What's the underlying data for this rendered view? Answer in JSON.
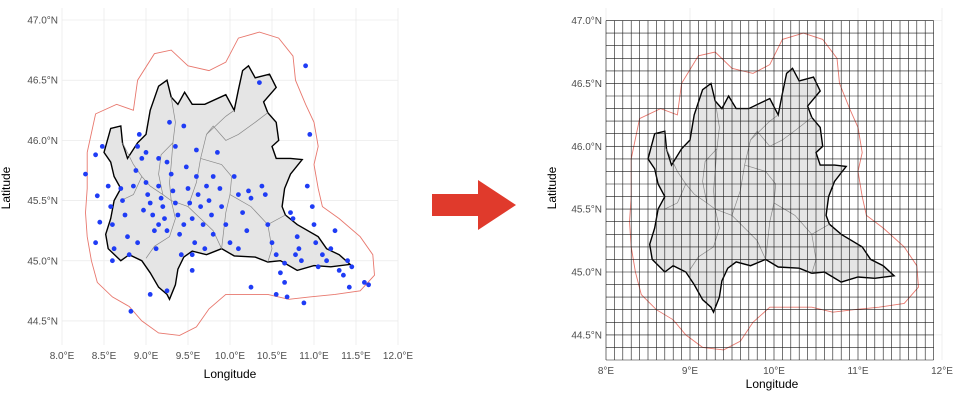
{
  "colors": {
    "region_fill": "#e5e5e5",
    "region_border": "#000000",
    "province_border": "#8a8a8a",
    "buffer_line": "#e8786e",
    "station_points": "#1f3cf5",
    "grid_cells": "#1a1a1a",
    "arrow": "#e03a2c",
    "panel_grid": "#ebebeb"
  },
  "left_map": {
    "xlabel": "Longitude",
    "ylabel": "Latitude",
    "x_ticks": [
      "8.0°E",
      "8.5°E",
      "9.0°E",
      "9.5°E",
      "10.0°E",
      "10.5°E",
      "11.0°E",
      "11.5°E",
      "12.0°E"
    ],
    "y_ticks": [
      "44.5°N",
      "45.0°N",
      "45.5°N",
      "46.0°N",
      "46.5°N",
      "47.0°N"
    ],
    "xlim": [
      8.0,
      12.0
    ],
    "ylim": [
      44.3,
      47.1
    ]
  },
  "right_map": {
    "xlabel": "Longitude",
    "ylabel": "Latitude",
    "x_ticks": [
      "8°E",
      "9°E",
      "10°E",
      "11°E",
      "12°E"
    ],
    "y_ticks": [
      "44.5°N",
      "45.0°N",
      "45.5°N",
      "46.0°N",
      "46.5°N",
      "47.0°N"
    ],
    "xlim": [
      8.0,
      12.0
    ],
    "ylim": [
      44.3,
      47.1
    ],
    "grid_lon_range": [
      8.0,
      11.9
    ],
    "grid_lat_range": [
      44.3,
      47.0
    ],
    "grid_cell_deg": 0.1
  },
  "arrow": {
    "icon": "arrow-right-icon"
  },
  "region_outline": [
    [
      8.5,
      45.9
    ],
    [
      8.58,
      46.1
    ],
    [
      8.7,
      46.12
    ],
    [
      8.72,
      45.98
    ],
    [
      8.78,
      45.85
    ],
    [
      8.9,
      45.98
    ],
    [
      9.0,
      46.05
    ],
    [
      9.05,
      46.25
    ],
    [
      9.15,
      46.45
    ],
    [
      9.25,
      46.5
    ],
    [
      9.3,
      46.36
    ],
    [
      9.38,
      46.3
    ],
    [
      9.46,
      46.4
    ],
    [
      9.55,
      46.3
    ],
    [
      9.7,
      46.3
    ],
    [
      9.95,
      46.38
    ],
    [
      10.05,
      46.25
    ],
    [
      10.1,
      46.42
    ],
    [
      10.15,
      46.58
    ],
    [
      10.22,
      46.62
    ],
    [
      10.3,
      46.52
    ],
    [
      10.47,
      46.55
    ],
    [
      10.55,
      46.44
    ],
    [
      10.4,
      46.32
    ],
    [
      10.45,
      46.23
    ],
    [
      10.55,
      46.15
    ],
    [
      10.58,
      46.0
    ],
    [
      10.5,
      45.95
    ],
    [
      10.55,
      45.85
    ],
    [
      10.72,
      45.85
    ],
    [
      10.86,
      45.84
    ],
    [
      10.72,
      45.72
    ],
    [
      10.65,
      45.6
    ],
    [
      10.62,
      45.45
    ],
    [
      10.66,
      45.38
    ],
    [
      10.8,
      45.3
    ],
    [
      11.05,
      45.2
    ],
    [
      11.15,
      45.1
    ],
    [
      11.3,
      45.05
    ],
    [
      11.43,
      44.97
    ],
    [
      11.2,
      44.95
    ],
    [
      11.0,
      44.96
    ],
    [
      10.8,
      44.92
    ],
    [
      10.6,
      45.0
    ],
    [
      10.45,
      44.99
    ],
    [
      10.3,
      45.03
    ],
    [
      10.05,
      45.04
    ],
    [
      9.9,
      45.1
    ],
    [
      9.72,
      45.05
    ],
    [
      9.55,
      45.08
    ],
    [
      9.45,
      45.03
    ],
    [
      9.38,
      44.93
    ],
    [
      9.35,
      44.8
    ],
    [
      9.28,
      44.68
    ],
    [
      9.25,
      44.72
    ],
    [
      9.15,
      44.78
    ],
    [
      9.05,
      44.9
    ],
    [
      8.95,
      45.0
    ],
    [
      8.8,
      45.05
    ],
    [
      8.7,
      45.0
    ],
    [
      8.55,
      45.1
    ],
    [
      8.52,
      45.22
    ],
    [
      8.58,
      45.35
    ],
    [
      8.62,
      45.5
    ],
    [
      8.7,
      45.6
    ],
    [
      8.62,
      45.7
    ],
    [
      8.58,
      45.82
    ]
  ],
  "province_lines": [
    [
      [
        9.3,
        46.36
      ],
      [
        9.35,
        46.15
      ],
      [
        9.32,
        45.98
      ],
      [
        9.3,
        45.8
      ],
      [
        9.28,
        45.65
      ],
      [
        9.3,
        45.5
      ]
    ],
    [
      [
        8.72,
        45.98
      ],
      [
        8.85,
        45.8
      ],
      [
        8.95,
        45.7
      ],
      [
        9.05,
        45.62
      ],
      [
        9.2,
        45.55
      ],
      [
        9.3,
        45.5
      ]
    ],
    [
      [
        9.3,
        45.5
      ],
      [
        9.35,
        45.35
      ],
      [
        9.28,
        45.2
      ],
      [
        9.1,
        45.12
      ],
      [
        9.0,
        45.02
      ]
    ],
    [
      [
        9.3,
        45.5
      ],
      [
        9.5,
        45.45
      ],
      [
        9.65,
        45.35
      ],
      [
        9.8,
        45.25
      ],
      [
        9.9,
        45.1
      ]
    ],
    [
      [
        9.5,
        45.45
      ],
      [
        9.6,
        45.65
      ],
      [
        9.65,
        45.85
      ],
      [
        9.72,
        46.05
      ],
      [
        9.95,
        46.2
      ],
      [
        10.05,
        46.25
      ]
    ],
    [
      [
        9.65,
        45.85
      ],
      [
        9.9,
        45.8
      ],
      [
        10.02,
        45.7
      ],
      [
        10.0,
        45.55
      ],
      [
        9.95,
        45.4
      ],
      [
        9.9,
        45.1
      ]
    ],
    [
      [
        10.0,
        45.55
      ],
      [
        10.25,
        45.45
      ],
      [
        10.45,
        45.3
      ],
      [
        10.66,
        45.38
      ]
    ],
    [
      [
        10.45,
        45.3
      ],
      [
        10.5,
        45.1
      ],
      [
        10.45,
        44.99
      ]
    ],
    [
      [
        9.72,
        46.05
      ],
      [
        9.8,
        46.12
      ],
      [
        9.95,
        46.0
      ],
      [
        10.1,
        46.05
      ],
      [
        10.3,
        46.15
      ],
      [
        10.45,
        46.23
      ]
    ],
    [
      [
        9.2,
        45.55
      ],
      [
        9.15,
        45.72
      ],
      [
        9.18,
        45.88
      ],
      [
        9.32,
        45.98
      ]
    ],
    [
      [
        8.95,
        45.7
      ],
      [
        8.85,
        45.55
      ],
      [
        8.7,
        45.5
      ]
    ]
  ],
  "buffer_outline": [
    [
      8.3,
      45.9
    ],
    [
      8.4,
      46.22
    ],
    [
      8.65,
      46.3
    ],
    [
      8.85,
      46.25
    ],
    [
      8.9,
      46.5
    ],
    [
      9.1,
      46.72
    ],
    [
      9.3,
      46.75
    ],
    [
      9.5,
      46.62
    ],
    [
      9.75,
      46.58
    ],
    [
      9.95,
      46.65
    ],
    [
      10.1,
      46.85
    ],
    [
      10.35,
      46.9
    ],
    [
      10.58,
      46.85
    ],
    [
      10.75,
      46.7
    ],
    [
      10.78,
      46.5
    ],
    [
      10.9,
      46.3
    ],
    [
      11.0,
      46.15
    ],
    [
      11.05,
      45.95
    ],
    [
      11.0,
      45.8
    ],
    [
      11.05,
      45.6
    ],
    [
      11.1,
      45.45
    ],
    [
      11.3,
      45.35
    ],
    [
      11.55,
      45.2
    ],
    [
      11.7,
      45.05
    ],
    [
      11.72,
      44.88
    ],
    [
      11.55,
      44.75
    ],
    [
      11.25,
      44.72
    ],
    [
      10.95,
      44.7
    ],
    [
      10.7,
      44.68
    ],
    [
      10.45,
      44.72
    ],
    [
      10.2,
      44.72
    ],
    [
      9.95,
      44.72
    ],
    [
      9.75,
      44.6
    ],
    [
      9.6,
      44.45
    ],
    [
      9.4,
      44.38
    ],
    [
      9.15,
      44.4
    ],
    [
      8.95,
      44.5
    ],
    [
      8.8,
      44.62
    ],
    [
      8.6,
      44.7
    ],
    [
      8.42,
      44.82
    ],
    [
      8.35,
      45.0
    ],
    [
      8.3,
      45.2
    ],
    [
      8.28,
      45.4
    ],
    [
      8.3,
      45.6
    ]
  ],
  "stations": [
    [
      8.28,
      45.72
    ],
    [
      8.4,
      45.88
    ],
    [
      8.42,
      45.54
    ],
    [
      8.45,
      45.32
    ],
    [
      8.4,
      45.15
    ],
    [
      8.55,
      45.62
    ],
    [
      8.58,
      45.45
    ],
    [
      8.6,
      45.3
    ],
    [
      8.62,
      45.1
    ],
    [
      8.7,
      45.6
    ],
    [
      8.72,
      45.5
    ],
    [
      8.75,
      45.38
    ],
    [
      8.78,
      45.2
    ],
    [
      8.8,
      45.05
    ],
    [
      8.85,
      45.62
    ],
    [
      8.88,
      45.75
    ],
    [
      8.9,
      45.95
    ],
    [
      8.92,
      46.05
    ],
    [
      8.95,
      45.85
    ],
    [
      8.97,
      45.42
    ],
    [
      9.0,
      45.65
    ],
    [
      9.02,
      45.55
    ],
    [
      9.05,
      45.48
    ],
    [
      9.08,
      45.38
    ],
    [
      9.1,
      45.25
    ],
    [
      9.12,
      45.1
    ],
    [
      9.15,
      45.85
    ],
    [
      9.15,
      45.62
    ],
    [
      9.18,
      45.52
    ],
    [
      9.2,
      45.45
    ],
    [
      9.22,
      45.35
    ],
    [
      9.25,
      45.25
    ],
    [
      9.28,
      46.15
    ],
    [
      9.3,
      45.72
    ],
    [
      9.32,
      45.58
    ],
    [
      9.35,
      45.48
    ],
    [
      9.38,
      45.38
    ],
    [
      9.4,
      45.22
    ],
    [
      9.42,
      45.05
    ],
    [
      9.45,
      46.12
    ],
    [
      9.48,
      45.78
    ],
    [
      9.5,
      45.6
    ],
    [
      9.52,
      45.48
    ],
    [
      9.55,
      45.35
    ],
    [
      9.58,
      45.15
    ],
    [
      9.6,
      45.7
    ],
    [
      9.62,
      45.55
    ],
    [
      9.65,
      45.45
    ],
    [
      9.68,
      45.3
    ],
    [
      9.7,
      45.1
    ],
    [
      9.72,
      45.62
    ],
    [
      9.75,
      45.5
    ],
    [
      9.78,
      45.38
    ],
    [
      9.8,
      45.22
    ],
    [
      9.85,
      45.9
    ],
    [
      9.88,
      45.6
    ],
    [
      9.9,
      45.45
    ],
    [
      9.95,
      45.3
    ],
    [
      10.0,
      45.15
    ],
    [
      10.05,
      45.7
    ],
    [
      10.1,
      45.55
    ],
    [
      10.15,
      45.4
    ],
    [
      10.2,
      45.25
    ],
    [
      10.22,
      45.58
    ],
    [
      10.25,
      45.52
    ],
    [
      10.35,
      46.48
    ],
    [
      10.38,
      45.62
    ],
    [
      10.42,
      45.55
    ],
    [
      10.45,
      45.3
    ],
    [
      10.5,
      45.15
    ],
    [
      10.55,
      45.05
    ],
    [
      10.6,
      44.9
    ],
    [
      10.65,
      44.82
    ],
    [
      10.68,
      44.7
    ],
    [
      10.72,
      45.4
    ],
    [
      10.75,
      45.35
    ],
    [
      10.8,
      45.2
    ],
    [
      10.82,
      45.1
    ],
    [
      10.85,
      45.0
    ],
    [
      10.88,
      44.65
    ],
    [
      10.9,
      46.62
    ],
    [
      10.92,
      45.62
    ],
    [
      10.95,
      46.05
    ],
    [
      10.98,
      45.45
    ],
    [
      11.0,
      45.3
    ],
    [
      11.02,
      45.15
    ],
    [
      11.05,
      44.95
    ],
    [
      11.1,
      45.05
    ],
    [
      11.15,
      45.0
    ],
    [
      11.2,
      45.1
    ],
    [
      11.25,
      45.25
    ],
    [
      11.3,
      44.92
    ],
    [
      11.35,
      44.88
    ],
    [
      11.4,
      45.0
    ],
    [
      11.42,
      44.78
    ],
    [
      11.45,
      44.95
    ],
    [
      11.6,
      44.82
    ],
    [
      11.65,
      44.8
    ],
    [
      8.82,
      44.58
    ],
    [
      9.05,
      44.72
    ],
    [
      9.25,
      44.75
    ],
    [
      9.55,
      44.92
    ],
    [
      10.25,
      44.78
    ],
    [
      10.55,
      44.72
    ],
    [
      9.35,
      45.95
    ],
    [
      9.25,
      45.82
    ],
    [
      9.6,
      45.92
    ],
    [
      8.6,
      45.0
    ],
    [
      8.48,
      45.95
    ],
    [
      9.0,
      45.9
    ],
    [
      9.8,
      45.7
    ],
    [
      10.1,
      45.1
    ],
    [
      9.45,
      45.3
    ],
    [
      9.15,
      45.3
    ],
    [
      8.9,
      45.15
    ],
    [
      9.55,
      45.05
    ],
    [
      10.65,
      44.98
    ],
    [
      10.78,
      45.05
    ]
  ]
}
